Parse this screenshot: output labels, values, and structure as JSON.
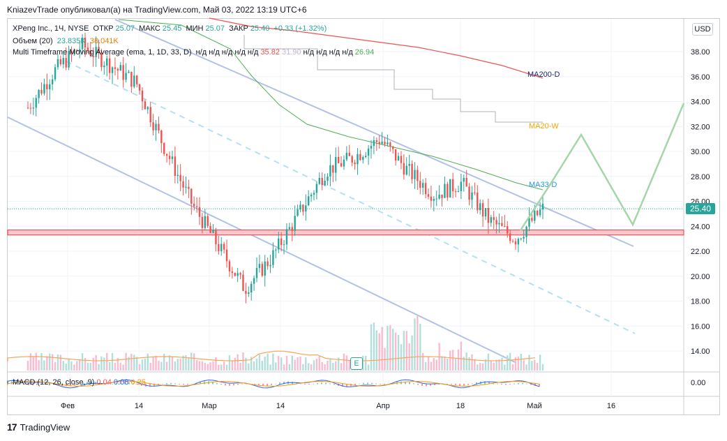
{
  "header": {
    "publish_line": "KniazevTrade опубликовал(а) на TradingView.com, Май 03, 2022 13:19 UTC+6"
  },
  "legend": {
    "symbol": "XPeng Inc., 1Ч, NYSE",
    "open_label": "ОТКР",
    "open": "25.07",
    "high_label": "МАКС",
    "high": "25.45",
    "low_label": "МИН",
    "low": "25.07",
    "close_label": "ЗАКР",
    "close": "25.40",
    "change": "+0.33 (+1.32%)",
    "volume_label": "Объем (20)",
    "volume_value": "23.835K",
    "volume_ma": "38.041K",
    "mtf_label": "Multi Timeframe Moving Average (ema, 1, 1D, 33, D)",
    "mtf_values": [
      "н/д",
      "н/д",
      "н/д",
      "н/д",
      "н/д",
      "35.82",
      "31.90",
      "н/д",
      "н/д",
      "н/д",
      "н/д",
      "26.94"
    ],
    "macd_label": "MACD (12, 26, close, 9)",
    "macd_values": [
      "0.04",
      "0.08",
      "0.25"
    ]
  },
  "chart_data": {
    "type": "line",
    "title": "",
    "price_axis": {
      "currency": "USD",
      "ylim": [
        12,
        40
      ],
      "ticks": [
        "38.00",
        "36.00",
        "34.00",
        "32.00",
        "30.00",
        "28.00",
        "26.00",
        "24.00",
        "22.00",
        "20.00",
        "18.00",
        "16.00",
        "14.00"
      ]
    },
    "macd_axis": {
      "ticks": [
        "0.00"
      ]
    },
    "x_tick_labels": [
      "Фев",
      "14",
      "Мар",
      "14",
      "Апр",
      "18",
      "Май",
      "16"
    ],
    "current_price": "25.40",
    "moving_averages": [
      {
        "name": "MA200-D",
        "value": 35.8,
        "color": "#1a237e"
      },
      {
        "name": "MA20-W",
        "value": 31.9,
        "color": "#f7a600"
      },
      {
        "name": "MA33-D",
        "value": 26.9,
        "color": "#2196f3"
      }
    ],
    "close_series": [
      [
        "Фев",
        33.5
      ],
      [
        "Фев",
        36.5
      ],
      [
        "14",
        38.5
      ],
      [
        "14",
        37.0
      ],
      [
        "Мар",
        35.5
      ],
      [
        "Мар",
        30.5
      ],
      [
        "Мар",
        26.0
      ],
      [
        "14",
        22.5
      ],
      [
        "14",
        19.0
      ],
      [
        "14",
        21.5
      ],
      [
        "14",
        25.0
      ],
      [
        "14",
        28.5
      ],
      [
        "Апр",
        29.5
      ],
      [
        "Апр",
        31.0
      ],
      [
        "Апр",
        28.5
      ],
      [
        "18",
        26.5
      ],
      [
        "18",
        27.5
      ],
      [
        "18",
        24.5
      ],
      [
        "Май",
        23.0
      ],
      [
        "Май",
        25.4
      ]
    ],
    "support_zone": [
      23.3,
      23.7
    ],
    "forecast_path": [
      [
        "Май",
        25.4
      ],
      [
        "Май",
        28.0
      ],
      [
        "Май",
        31.5
      ],
      [
        "16",
        24.2
      ],
      [
        "16",
        33.8
      ]
    ],
    "annotation": "E",
    "colors": {
      "up": "#26a69a",
      "down": "#ef5350",
      "support": "#f23645",
      "channel": "#b2c1e6",
      "forecast": "#a5d6a7",
      "ma200": "#ef5350",
      "ma20w": "#b0b0b0",
      "ma33": "#4caf50",
      "macd": "#2962ff",
      "signal": "#ff9800"
    }
  },
  "branding": {
    "logo_text": "TradingView"
  }
}
